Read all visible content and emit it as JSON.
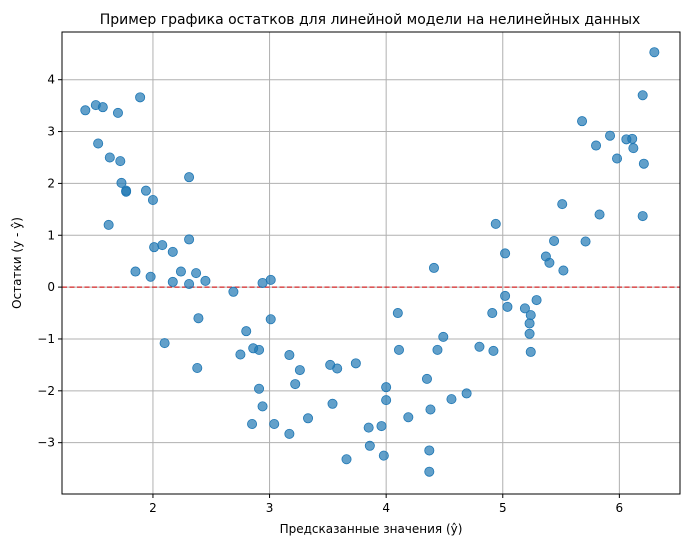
{
  "chart_data": {
    "type": "scatter",
    "title": "Пример графика остатков для линейной модели на нелинейных данных",
    "xlabel": "Предсказанные значения (ŷ)",
    "ylabel": "Остатки (y - ŷ)",
    "xlim": [
      1.22,
      6.52
    ],
    "ylim": [
      -3.99,
      4.92
    ],
    "x_ticks": [
      2,
      3,
      4,
      5,
      6
    ],
    "y_ticks": [
      -3,
      -2,
      -1,
      0,
      1,
      2,
      3,
      4
    ],
    "y_tick_labels": [
      "−3",
      "−2",
      "−1",
      "0",
      "1",
      "2",
      "3",
      "4"
    ],
    "grid": true,
    "point_color": "#1f77b4",
    "reference_line": {
      "y": 0,
      "color": "#d62728",
      "style": "dashed"
    },
    "points": [
      [
        1.42,
        3.41
      ],
      [
        1.51,
        3.51
      ],
      [
        1.57,
        3.47
      ],
      [
        1.7,
        3.36
      ],
      [
        1.89,
        3.66
      ],
      [
        1.53,
        2.77
      ],
      [
        1.63,
        2.5
      ],
      [
        1.72,
        2.43
      ],
      [
        1.73,
        2.01
      ],
      [
        1.77,
        1.86
      ],
      [
        1.77,
        1.84
      ],
      [
        1.94,
        1.86
      ],
      [
        2.0,
        1.68
      ],
      [
        2.31,
        2.12
      ],
      [
        1.62,
        1.2
      ],
      [
        2.01,
        0.77
      ],
      [
        2.08,
        0.81
      ],
      [
        2.31,
        0.92
      ],
      [
        2.17,
        0.68
      ],
      [
        1.85,
        0.3
      ],
      [
        1.98,
        0.2
      ],
      [
        2.24,
        0.3
      ],
      [
        2.37,
        0.27
      ],
      [
        2.17,
        0.1
      ],
      [
        2.31,
        0.06
      ],
      [
        2.45,
        0.12
      ],
      [
        2.94,
        0.08
      ],
      [
        3.01,
        0.14
      ],
      [
        2.69,
        -0.09
      ],
      [
        2.39,
        -0.6
      ],
      [
        3.01,
        -0.62
      ],
      [
        2.1,
        -1.08
      ],
      [
        2.8,
        -0.85
      ],
      [
        2.75,
        -1.3
      ],
      [
        2.86,
        -1.18
      ],
      [
        2.91,
        -1.21
      ],
      [
        2.38,
        -1.56
      ],
      [
        3.17,
        -1.31
      ],
      [
        3.26,
        -1.6
      ],
      [
        3.22,
        -1.87
      ],
      [
        2.91,
        -1.96
      ],
      [
        2.94,
        -2.3
      ],
      [
        2.85,
        -2.64
      ],
      [
        3.04,
        -2.64
      ],
      [
        3.17,
        -2.83
      ],
      [
        3.33,
        -2.53
      ],
      [
        3.52,
        -1.5
      ],
      [
        3.58,
        -1.57
      ],
      [
        3.74,
        -1.47
      ],
      [
        3.54,
        -2.25
      ],
      [
        3.66,
        -3.32
      ],
      [
        3.85,
        -2.71
      ],
      [
        3.96,
        -2.68
      ],
      [
        3.86,
        -3.06
      ],
      [
        3.98,
        -3.25
      ],
      [
        4.0,
        -1.93
      ],
      [
        4.0,
        -2.18
      ],
      [
        4.1,
        -0.5
      ],
      [
        4.11,
        -1.21
      ],
      [
        4.19,
        -2.51
      ],
      [
        4.35,
        -1.77
      ],
      [
        4.38,
        -2.36
      ],
      [
        4.37,
        -3.15
      ],
      [
        4.37,
        -3.56
      ],
      [
        4.41,
        0.37
      ],
      [
        4.44,
        -1.21
      ],
      [
        4.49,
        -0.96
      ],
      [
        4.56,
        -2.16
      ],
      [
        4.69,
        -2.05
      ],
      [
        4.8,
        -1.15
      ],
      [
        4.91,
        -0.5
      ],
      [
        4.92,
        -1.23
      ],
      [
        4.94,
        1.22
      ],
      [
        5.02,
        0.65
      ],
      [
        5.02,
        -0.17
      ],
      [
        5.04,
        -0.38
      ],
      [
        5.19,
        -0.41
      ],
      [
        5.24,
        -0.54
      ],
      [
        5.23,
        -0.7
      ],
      [
        5.23,
        -0.9
      ],
      [
        5.24,
        -1.25
      ],
      [
        5.29,
        -0.25
      ],
      [
        5.37,
        0.59
      ],
      [
        5.4,
        0.47
      ],
      [
        5.44,
        0.89
      ],
      [
        5.51,
        1.6
      ],
      [
        5.52,
        0.32
      ],
      [
        5.68,
        3.2
      ],
      [
        5.71,
        0.88
      ],
      [
        5.8,
        2.73
      ],
      [
        5.83,
        1.4
      ],
      [
        5.92,
        2.92
      ],
      [
        5.98,
        2.48
      ],
      [
        6.06,
        2.85
      ],
      [
        6.11,
        2.86
      ],
      [
        6.12,
        2.68
      ],
      [
        6.2,
        3.7
      ],
      [
        6.21,
        2.38
      ],
      [
        6.2,
        1.37
      ],
      [
        6.3,
        4.53
      ]
    ]
  }
}
